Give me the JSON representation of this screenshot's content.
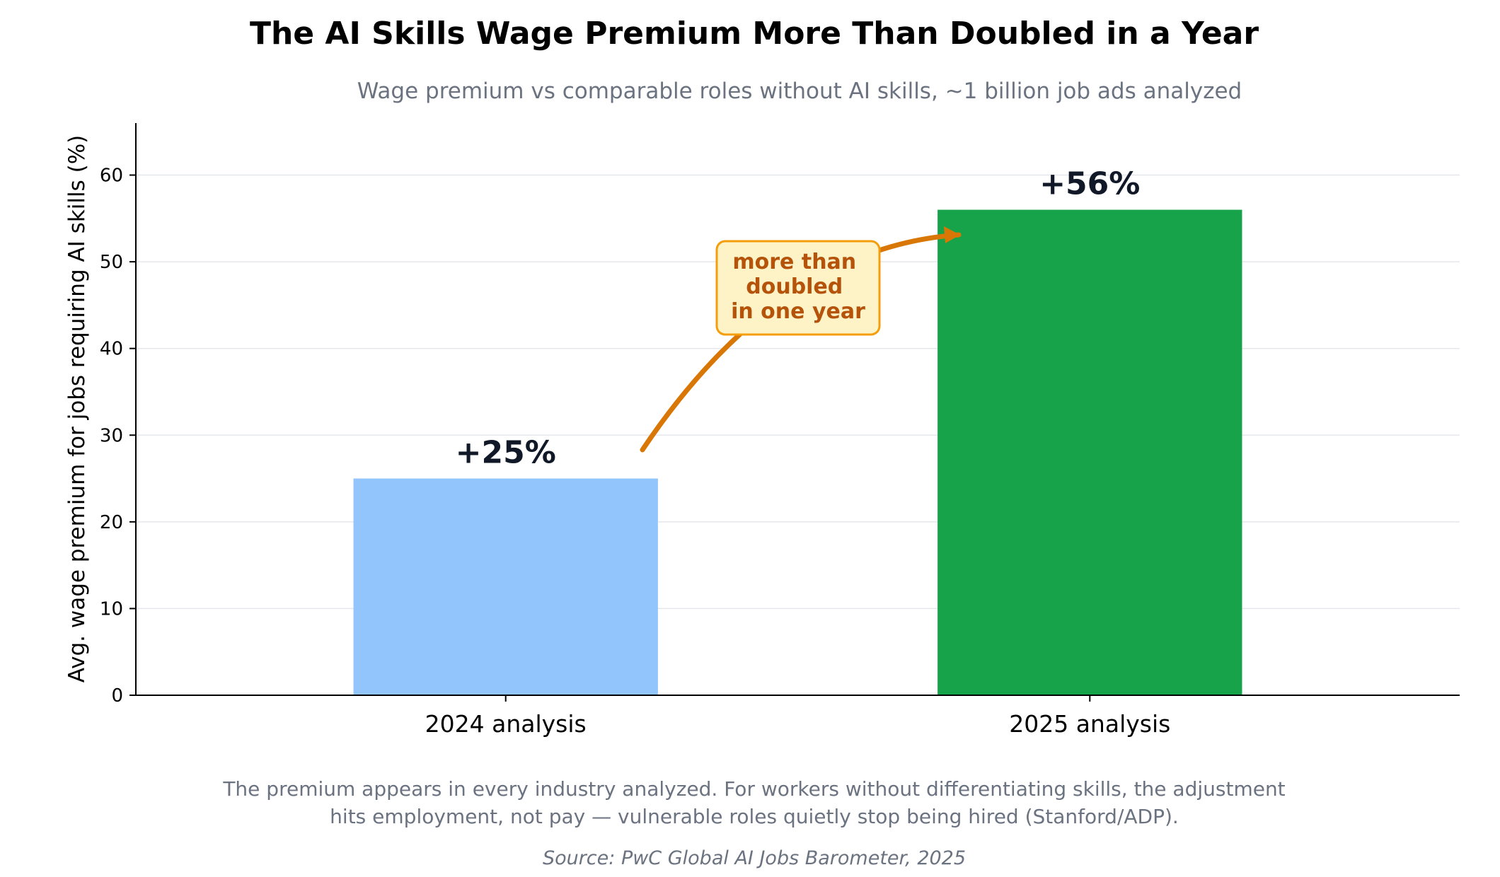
{
  "chart_data": {
    "type": "bar",
    "title": "The AI Skills Wage Premium More Than Doubled in a Year",
    "subtitle": "Wage premium vs comparable roles without AI skills, ~1 billion job ads analyzed",
    "xlabel": "",
    "ylabel": "Avg. wage premium for jobs requiring AI skills (%)",
    "categories": [
      "2024 analysis",
      "2025 analysis"
    ],
    "values": [
      25,
      56
    ],
    "data_labels": [
      "+25%",
      "+56%"
    ],
    "bar_colors": [
      "#93c5fd",
      "#16a34a"
    ],
    "ylim": [
      0,
      66
    ],
    "yticks": [
      0,
      10,
      20,
      30,
      40,
      50,
      60
    ],
    "grid": true,
    "annotation": {
      "lines": [
        "more than",
        "doubled",
        "in one year"
      ],
      "color": "#b45309",
      "arrow_color": "#d97706",
      "box_fill": "#fef3c7",
      "box_stroke": "#f59e0b"
    },
    "footnote": [
      "The premium appears in every industry analyzed. For workers without differentiating skills, the adjustment",
      "hits employment, not pay — vulnerable roles quietly stop being hired (Stanford/ADP)."
    ],
    "source": "Source: PwC Global AI Jobs Barometer, 2025"
  },
  "colors": {
    "title": "#000000",
    "muted_text": "#6b7280",
    "label_text": "#111827",
    "grid": "#e5e7eb",
    "axis": "#000000"
  }
}
